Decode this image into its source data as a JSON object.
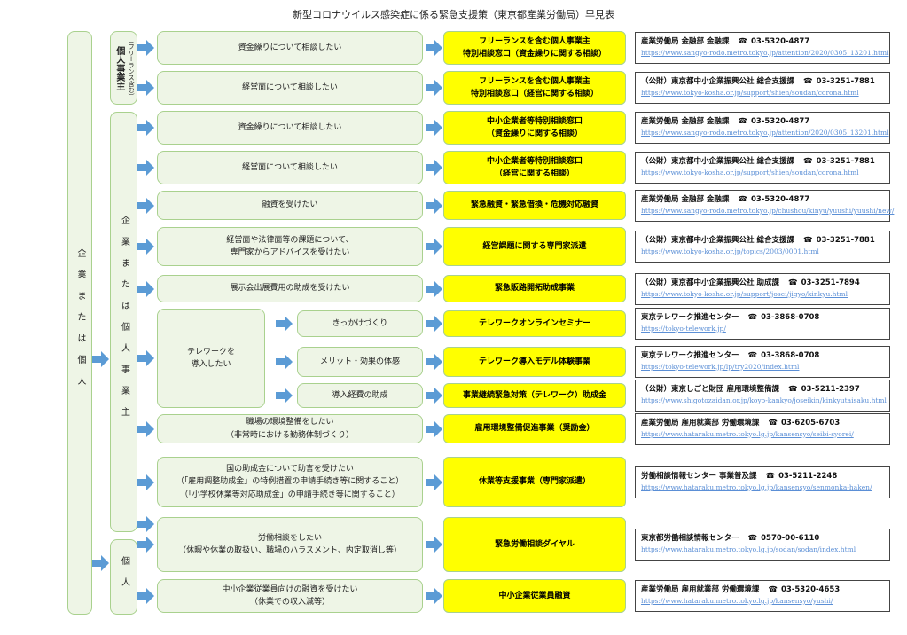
{
  "title": "新型コロナウイルス感染症に係る緊急支援策（東京都産業労働局）早見表",
  "left": {
    "main": "企業または個人",
    "freelance_note": "（フリーランス含む）",
    "sole": "個人事業主",
    "corp": "企業または個人事業主",
    "individual": "個人"
  },
  "telework_group": "テレワークを\n導入したい",
  "rows": [
    {
      "need": "資金繰りについて相談したい",
      "program": "フリーランスを含む個人事業主\n特別相談窓口（資金繰りに関する相談）",
      "org": "産業労働局 金融部 金融課",
      "tel": "03-5320-4877",
      "url": "https://www.sangyo-rodo.metro.tokyo.jp/attention/2020/0305_13201.html"
    },
    {
      "need": "経営面について相談したい",
      "program": "フリーランスを含む個人事業主\n特別相談窓口（経営に関する相談）",
      "org": "（公財）東京都中小企業振興公社 総合支援課",
      "tel": "03-3251-7881",
      "url": "https://www.tokyo-kosha.or.jp/support/shien/soudan/corona.html"
    },
    {
      "need": "資金繰りについて相談したい",
      "program": "中小企業者等特別相談窓口\n（資金繰りに関する相談）",
      "org": "産業労働局 金融部 金融課",
      "tel": "03-5320-4877",
      "url": "https://www.sangyo-rodo.metro.tokyo.jp/attention/2020/0305_13201.html"
    },
    {
      "need": "経営面について相談したい",
      "program": "中小企業者等特別相談窓口\n（経営に関する相談）",
      "org": "（公財）東京都中小企業振興公社 総合支援課",
      "tel": "03-3251-7881",
      "url": "https://www.tokyo-kosha.or.jp/support/shien/soudan/corona.html"
    },
    {
      "need": "融資を受けたい",
      "program": "緊急融資・緊急借換・危機対応融資",
      "org": "産業労働局 金融部 金融課",
      "tel": "03-5320-4877",
      "url": "https://www.sangyo-rodo.metro.tokyo.jp/chushou/kinyu/yuushi/yuushi/new/"
    },
    {
      "need": "経営面や法律面等の課題について、\n専門家からアドバイスを受けたい",
      "program": "経営課題に関する専門家派遣",
      "org": "（公財）東京都中小企業振興公社 総合支援課",
      "tel": "03-3251-7881",
      "url": "https://www.tokyo-kosha.or.jp/topics/2003/0001.html"
    },
    {
      "need": "展示会出展費用の助成を受けたい",
      "program": "緊急販路開拓助成事業",
      "org": "（公財）東京都中小企業振興公社 助成課",
      "tel": "03-3251-7894",
      "url": "https://www.tokyo-kosha.or.jp/support/josei/jigyo/kinkyu.html"
    },
    {
      "need": "きっかけづくり",
      "program": "テレワークオンラインセミナー",
      "org": "東京テレワーク推進センター",
      "tel": "03-3868-0708",
      "url": "https://tokyo-telework.jp/"
    },
    {
      "need": "メリット・効果の体感",
      "program": "テレワーク導入モデル体験事業",
      "org": "東京テレワーク推進センター",
      "tel": "03-3868-0708",
      "url": "https://tokyo-telework.jp/lp/try2020/index.html"
    },
    {
      "need": "導入経費の助成",
      "program": "事業継続緊急対策（テレワーク）助成金",
      "org": "（公財）東京しごと財団 雇用環境整備課",
      "tel": "03-5211-2397",
      "url": "https://www.shigotozaidan.or.jp/koyo-kankyo/joseikin/kinkyutaisaku.html"
    },
    {
      "need": "職場の環境整備をしたい\n（非常時における勤務体制づくり）",
      "program": "雇用環境整備促進事業（奨励金）",
      "org": "産業労働局 雇用就業部 労働環境課",
      "tel": "03-6205-6703",
      "url": "https://www.hataraku.metro.tokyo.lg.jp/kansensyo/seibi-syorei/"
    },
    {
      "need": "国の助成金について助言を受けたい\n（「雇用調整助成金」の特例措置の申請手続き等に関すること）\n（「小学校休業等対応助成金」の申請手続き等に関すること）",
      "program": "休業等支援事業（専門家派遣）",
      "org": "労働相談情報センター 事業普及課",
      "tel": "03-5211-2248",
      "url": "https://www.hataraku.metro.tokyo.lg.jp/kansensyo/senmonka-haken/"
    },
    {
      "need": "労働相談をしたい\n（休暇や休業の取扱い、職場のハラスメント、内定取消し等）",
      "program": "緊急労働相談ダイヤル",
      "org": "東京都労働相談情報センター",
      "tel": "0570-00-6110",
      "url": "https://www.hataraku.metro.tokyo.lg.jp/sodan/sodan/index.html"
    },
    {
      "need": "中小企業従業員向けの融資を受けたい\n（休業での収入減等）",
      "program": "中小企業従業員融資",
      "org": "産業労働局 雇用就業部 労働環境課",
      "tel": "03-5320-4653",
      "url": "https://www.hataraku.metro.tokyo.lg.jp/kansensyo/yushi/"
    }
  ],
  "phone_icon": "☎",
  "colors": {
    "green_border": "#a9d18e",
    "green_fill": "#eef5e6",
    "yellow": "#ffff00",
    "arrow": "#5b9bd5",
    "link": "#5b8fd6"
  }
}
